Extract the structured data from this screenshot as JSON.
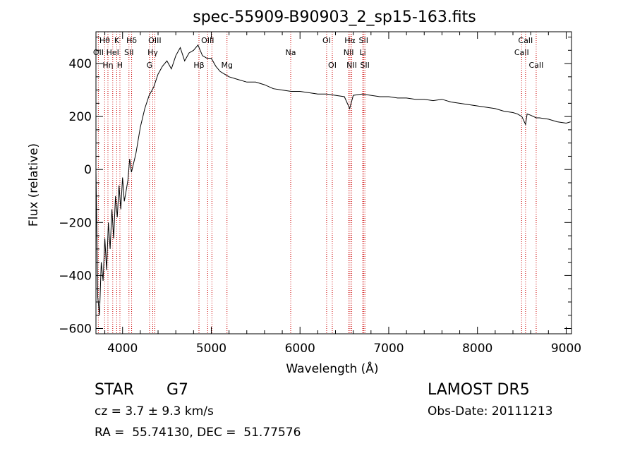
{
  "chart_data": {
    "type": "line",
    "title": "spec-55909-B90903_2_sp15-163.fits",
    "xlabel": "Wavelength (Å)",
    "ylabel": "Flux (relative)",
    "xlim": [
      3700,
      9060
    ],
    "ylim": [
      -620,
      520
    ],
    "x_ticks": [
      4000,
      5000,
      6000,
      7000,
      8000,
      9000
    ],
    "y_ticks": [
      -600,
      -400,
      -200,
      0,
      200,
      400
    ],
    "grid": false,
    "line_color": "#000000",
    "marker_color": "#cc0000",
    "spectrum": {
      "x": [
        3700,
        3720,
        3740,
        3760,
        3780,
        3800,
        3820,
        3840,
        3860,
        3880,
        3900,
        3920,
        3940,
        3960,
        3980,
        4000,
        4020,
        4040,
        4060,
        4080,
        4100,
        4150,
        4200,
        4250,
        4300,
        4350,
        4400,
        4450,
        4500,
        4550,
        4600,
        4650,
        4700,
        4750,
        4800,
        4850,
        4900,
        4950,
        5000,
        5050,
        5100,
        5150,
        5200,
        5300,
        5400,
        5500,
        5600,
        5700,
        5800,
        5900,
        6000,
        6100,
        6200,
        6300,
        6400,
        6500,
        6560,
        6600,
        6700,
        6800,
        6900,
        7000,
        7100,
        7200,
        7300,
        7400,
        7500,
        7600,
        7700,
        7800,
        7900,
        8000,
        8100,
        8200,
        8300,
        8400,
        8450,
        8500,
        8542,
        8560,
        8600,
        8662,
        8700,
        8800,
        8900,
        9000,
        9050
      ],
      "y": [
        0,
        -480,
        -550,
        -350,
        -420,
        -260,
        -380,
        -200,
        -300,
        -150,
        -260,
        -100,
        -180,
        -60,
        -150,
        -30,
        -120,
        -80,
        -40,
        40,
        -10,
        60,
        160,
        230,
        280,
        310,
        360,
        390,
        410,
        380,
        430,
        460,
        410,
        440,
        450,
        470,
        430,
        420,
        420,
        390,
        370,
        360,
        350,
        340,
        330,
        330,
        320,
        305,
        300,
        295,
        295,
        290,
        285,
        285,
        280,
        275,
        230,
        280,
        285,
        280,
        275,
        275,
        270,
        270,
        265,
        265,
        260,
        265,
        255,
        250,
        245,
        240,
        235,
        230,
        220,
        215,
        210,
        200,
        170,
        210,
        205,
        195,
        195,
        190,
        180,
        175,
        180
      ]
    },
    "line_markers": [
      {
        "x": 3727,
        "label": "OII",
        "row": 2
      },
      {
        "x": 3798,
        "label": "Hθ",
        "row": 1
      },
      {
        "x": 3835,
        "label": "Hη",
        "row": 3
      },
      {
        "x": 3889,
        "label": "HeI",
        "row": 2
      },
      {
        "x": 3934,
        "label": "K",
        "row": 1
      },
      {
        "x": 3970,
        "label": "H",
        "row": 3
      },
      {
        "x": 4072,
        "label": "SII",
        "row": 2
      },
      {
        "x": 4102,
        "label": "Hδ",
        "row": 1
      },
      {
        "x": 4304,
        "label": "G",
        "row": 3
      },
      {
        "x": 4340,
        "label": "Hγ",
        "row": 2
      },
      {
        "x": 4363,
        "label": "OIII",
        "row": 1
      },
      {
        "x": 4861,
        "label": "Hβ",
        "row": 3
      },
      {
        "x": 4959,
        "label": "OIII",
        "row": 1
      },
      {
        "x": 5007,
        "label": "",
        "row": 1
      },
      {
        "x": 5177,
        "label": "Mg",
        "row": 3
      },
      {
        "x": 5895,
        "label": "Na",
        "row": 2
      },
      {
        "x": 6300,
        "label": "OI",
        "row": 1
      },
      {
        "x": 6364,
        "label": "OI",
        "row": 3
      },
      {
        "x": 6548,
        "label": "NII",
        "row": 2
      },
      {
        "x": 6563,
        "label": "Hα",
        "row": 1
      },
      {
        "x": 6583,
        "label": "NII",
        "row": 3
      },
      {
        "x": 6707,
        "label": "Li",
        "row": 2
      },
      {
        "x": 6716,
        "label": "SII",
        "row": 1
      },
      {
        "x": 6731,
        "label": "SII",
        "row": 3
      },
      {
        "x": 8498,
        "label": "CaII",
        "row": 2
      },
      {
        "x": 8542,
        "label": "CaII",
        "row": 1
      },
      {
        "x": 8662,
        "label": "CaII",
        "row": 3
      }
    ]
  },
  "info": {
    "object_class": "STAR",
    "subclass": "G7",
    "survey": "LAMOST DR5",
    "redshift_text": "cz = 3.7 ± 9.3 km/s",
    "obs_date_text": "Obs-Date: 20111213",
    "coords_text": "RA =  55.74130, DEC =  51.77576"
  }
}
